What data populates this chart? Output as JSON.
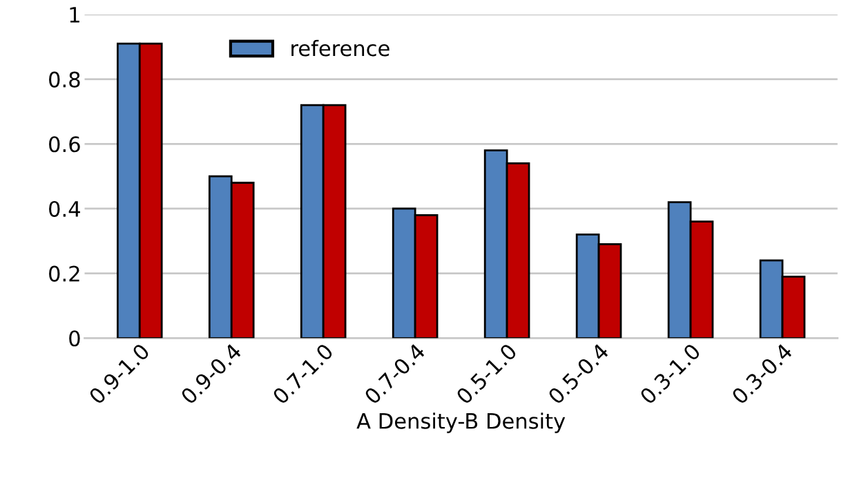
{
  "chart_data": {
    "type": "bar",
    "xlabel": "A Density-B Density",
    "categories": [
      "0.9-1.0",
      "0.9-0.4",
      "0.7-1.0",
      "0.7-0.4",
      "0.5-1.0",
      "0.5-0.4",
      "0.3-1.0",
      "0.3-0.4"
    ],
    "series": [
      {
        "name": "reference",
        "color": "#4f81bd",
        "values": [
          0.91,
          0.5,
          0.72,
          0.4,
          0.58,
          0.32,
          0.42,
          0.24
        ]
      },
      {
        "color": "#c00000",
        "values": [
          0.91,
          0.48,
          0.72,
          0.38,
          0.54,
          0.29,
          0.36,
          0.19
        ]
      }
    ],
    "ylim": [
      0,
      1
    ],
    "yticks": [
      0,
      0.2,
      0.4,
      0.6,
      0.8,
      1
    ],
    "grid": "y",
    "legend": "top"
  }
}
